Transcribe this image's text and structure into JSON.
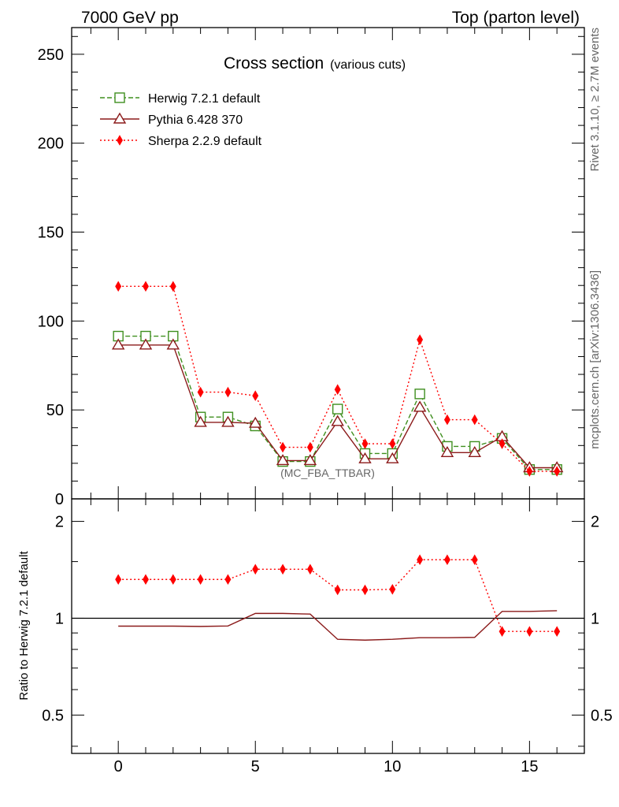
{
  "header": {
    "left": "7000 GeV pp",
    "right": "Top (parton level)"
  },
  "side": {
    "rivet": "Rivet 3.1.10, ≥ 2.7M events",
    "mcplots": "mcplots.cern.ch [arXiv:1306.3436]"
  },
  "chart_data": [
    {
      "type": "line",
      "title": "Cross section",
      "subtitle": "(various cuts)",
      "analysis": "(MC_FBA_TTBAR)",
      "x": [
        0,
        1,
        2,
        3,
        4,
        5,
        6,
        7,
        8,
        9,
        10,
        11,
        12,
        13,
        14,
        15,
        16
      ],
      "xlim": [
        -1.7,
        17
      ],
      "ylim": [
        0,
        265
      ],
      "yticks": [
        0,
        50,
        100,
        150,
        200,
        250
      ],
      "xticks": [
        0,
        5,
        10,
        15
      ],
      "legend_position": "top-left",
      "series": [
        {
          "name": "Herwig 7.2.1 default",
          "color": "#3f8f1f",
          "dash": "dashed",
          "marker": "open-square",
          "values": [
            91.5,
            91.5,
            91.5,
            46,
            46,
            41,
            21,
            21,
            50.5,
            25.5,
            25.5,
            59,
            29.5,
            29.5,
            34,
            16.5,
            16.5
          ]
        },
        {
          "name": "Pythia 6.428 370",
          "color": "#8b1a1a",
          "dash": "solid",
          "marker": "open-triangle",
          "values": [
            86.5,
            86.5,
            86.5,
            43,
            43,
            42.5,
            21.5,
            21.5,
            43.5,
            22.5,
            22.5,
            51.5,
            26,
            26,
            35,
            17.5,
            17.5
          ]
        },
        {
          "name": "Sherpa 2.2.9 default",
          "color": "#ff0000",
          "dash": "dotted",
          "marker": "filled-diamond",
          "values": [
            119.5,
            119.5,
            119.5,
            60,
            60,
            58,
            29,
            29,
            61.5,
            31,
            31,
            89.5,
            44.5,
            44.5,
            31,
            15.5,
            15.5
          ]
        }
      ]
    },
    {
      "type": "line",
      "ylabel": "Ratio to Herwig 7.2.1 default",
      "x": [
        0,
        1,
        2,
        3,
        4,
        5,
        6,
        7,
        8,
        9,
        10,
        11,
        12,
        13,
        14,
        15,
        16
      ],
      "xlim": [
        -1.7,
        17
      ],
      "ylim": [
        0.38,
        2.35
      ],
      "log_y": true,
      "yticks": [
        0.5,
        1,
        2
      ],
      "xticks": [
        0,
        5,
        10,
        15
      ],
      "reference_line": 1,
      "series": [
        {
          "name": "Pythia 6.428 370",
          "color": "#8b1a1a",
          "dash": "solid",
          "marker": "none",
          "values": [
            0.945,
            0.945,
            0.945,
            0.943,
            0.946,
            1.035,
            1.035,
            1.03,
            0.86,
            0.855,
            0.86,
            0.87,
            0.87,
            0.872,
            1.05,
            1.05,
            1.055
          ]
        },
        {
          "name": "Sherpa 2.2.9 default",
          "color": "#ff0000",
          "dash": "dotted",
          "marker": "filled-diamond",
          "values": [
            1.32,
            1.32,
            1.32,
            1.32,
            1.32,
            1.42,
            1.42,
            1.42,
            1.225,
            1.225,
            1.23,
            1.52,
            1.52,
            1.52,
            0.91,
            0.91,
            0.91
          ]
        }
      ]
    }
  ]
}
